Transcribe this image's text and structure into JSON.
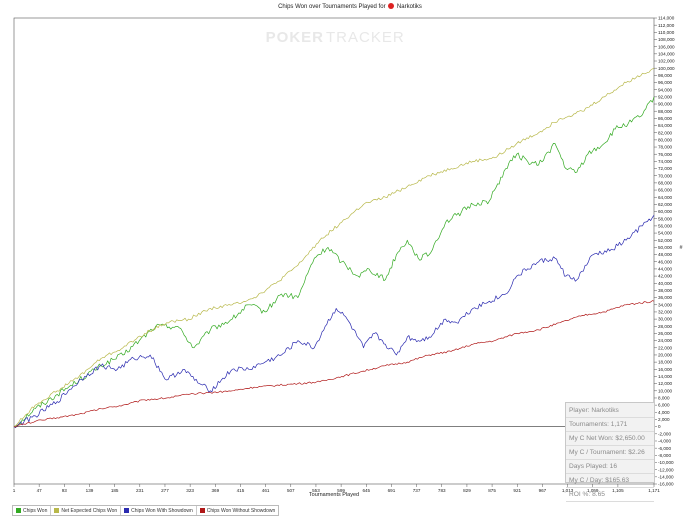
{
  "title": {
    "text": "Chips Won over Tournaments Played for",
    "player": "Narkotiks"
  },
  "watermark": {
    "left": "POKER",
    "right": "TRACKER"
  },
  "stats": [
    "Player: Narkotiks",
    "Tournaments: 1,171",
    "My C Net Won: $2,650.00",
    "My C / Tournament: $2.26",
    "Days Played: 16",
    "My C / Day: $165.63",
    "ROI %: 8.65"
  ],
  "chart_data": {
    "type": "line",
    "title": "Chips Won over Tournaments Played for Narkotiks",
    "xlabel": "Tournaments Played",
    "ylabel": "#",
    "xlim": [
      1,
      1171
    ],
    "ylim": [
      -16000,
      114000
    ],
    "y_tick_step": 2000,
    "x_ticks": [
      "1",
      "47",
      "93",
      "139",
      "185",
      "231",
      "277",
      "323",
      "369",
      "415",
      "461",
      "507",
      "553",
      "599",
      "645",
      "691",
      "737",
      "783",
      "829",
      "875",
      "921",
      "967",
      "1,013",
      "1,059",
      "1,105",
      "1,171"
    ],
    "grid": false,
    "legend_position": "bottom-left",
    "series": [
      {
        "name": "Chips Won",
        "color": "#33aa22",
        "x": [
          1,
          40,
          80,
          120,
          160,
          200,
          230,
          260,
          300,
          330,
          360,
          400,
          430,
          460,
          490,
          520,
          550,
          575,
          600,
          630,
          650,
          680,
          700,
          720,
          740,
          760,
          790,
          810,
          840,
          870,
          900,
          920,
          940,
          960,
          990,
          1010,
          1030,
          1050,
          1080,
          1100,
          1130,
          1150,
          1171
        ],
        "y": [
          0,
          5000,
          9000,
          13000,
          17000,
          20000,
          24000,
          28000,
          28000,
          22000,
          27000,
          30000,
          34000,
          32000,
          37000,
          36000,
          47000,
          50000,
          46000,
          42000,
          44000,
          41000,
          48000,
          52000,
          47000,
          48000,
          57000,
          59000,
          62000,
          63000,
          72000,
          76000,
          74000,
          73000,
          79000,
          72000,
          71000,
          76000,
          79000,
          83000,
          85000,
          87000,
          92000
        ]
      },
      {
        "name": "Net Expected Chips Won",
        "color": "#b8b84a",
        "x": [
          1,
          40,
          80,
          120,
          160,
          200,
          240,
          280,
          320,
          360,
          400,
          440,
          480,
          520,
          560,
          600,
          640,
          680,
          720,
          760,
          800,
          840,
          880,
          920,
          960,
          1000,
          1040,
          1080,
          1120,
          1171
        ],
        "y": [
          0,
          6000,
          10000,
          14000,
          19000,
          22000,
          26000,
          29000,
          30000,
          33000,
          34000,
          36000,
          40000,
          45000,
          52000,
          57000,
          62000,
          64000,
          67000,
          70000,
          72000,
          74000,
          75000,
          79000,
          82000,
          86000,
          88000,
          92000,
          96000,
          100000
        ]
      },
      {
        "name": "Chips Won With Showdown",
        "color": "#2b2bb0",
        "x": [
          1,
          40,
          80,
          100,
          130,
          160,
          190,
          220,
          250,
          280,
          310,
          340,
          360,
          380,
          400,
          430,
          460,
          490,
          520,
          550,
          570,
          590,
          610,
          640,
          660,
          680,
          700,
          720,
          740,
          760,
          790,
          810,
          840,
          870,
          900,
          920,
          940,
          960,
          990,
          1010,
          1030,
          1060,
          1090,
          1120,
          1150,
          1171
        ],
        "y": [
          0,
          3000,
          7000,
          10000,
          14000,
          17000,
          16000,
          19000,
          20000,
          13000,
          16000,
          12000,
          10000,
          13000,
          16000,
          16000,
          18000,
          20000,
          24000,
          22000,
          28000,
          33000,
          30000,
          22000,
          26000,
          23000,
          20000,
          25000,
          24000,
          25000,
          30000,
          29000,
          33000,
          35000,
          37000,
          42000,
          44000,
          46000,
          47000,
          42000,
          41000,
          48000,
          49000,
          52000,
          56000,
          59000
        ]
      },
      {
        "name": "Chips Won Without Showdown",
        "color": "#b01818",
        "x": [
          1,
          40,
          80,
          120,
          160,
          200,
          240,
          280,
          320,
          360,
          400,
          440,
          480,
          520,
          560,
          600,
          640,
          680,
          720,
          760,
          800,
          840,
          880,
          920,
          960,
          1000,
          1040,
          1080,
          1120,
          1171
        ],
        "y": [
          0,
          1500,
          2500,
          3500,
          5000,
          6000,
          7500,
          8000,
          9000,
          9500,
          10000,
          11000,
          11500,
          12000,
          12500,
          14000,
          15500,
          17000,
          18000,
          20000,
          21000,
          23000,
          24000,
          26000,
          27000,
          29000,
          31000,
          32000,
          34000,
          35000
        ]
      }
    ]
  }
}
